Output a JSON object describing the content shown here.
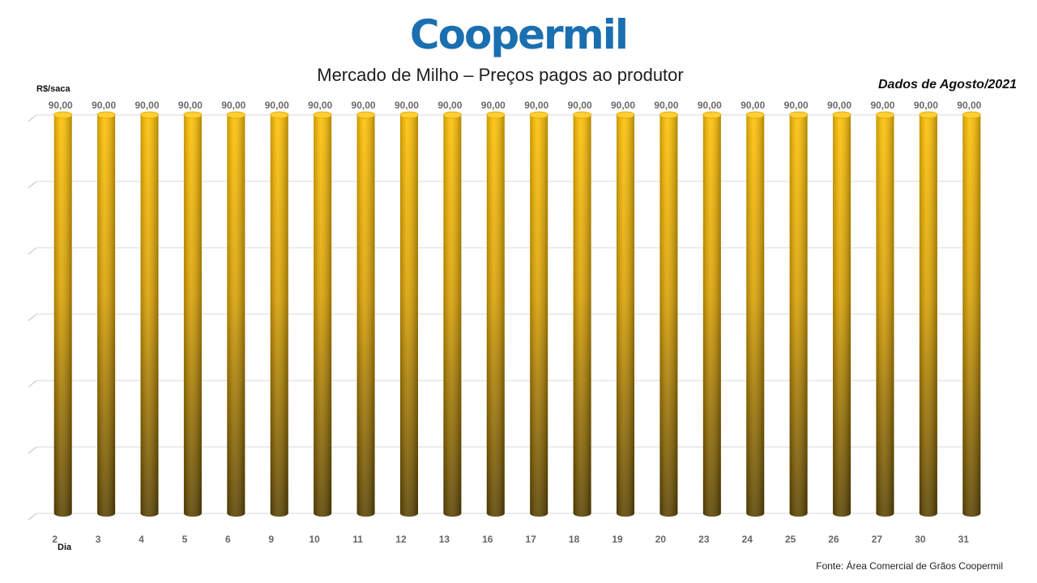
{
  "logo_text": "Coopermil",
  "title": "Mercado de Milho – Preços pagos ao produtor",
  "period": "Dados de Agosto/2021",
  "source": "Fonte:  Área Comercial de Grãos Coopermil",
  "colors": {
    "logo": "#1a6fb0",
    "bar_top": "#ffc000",
    "bar_bottom": "#5a4300",
    "grid": "#d9d9d9"
  },
  "chart_data": {
    "type": "bar",
    "ylabel": "R$/saca",
    "xlabel": "Dia",
    "categories": [
      "2",
      "3",
      "4",
      "5",
      "6",
      "9",
      "10",
      "11",
      "12",
      "13",
      "16",
      "17",
      "18",
      "19",
      "20",
      "23",
      "24",
      "25",
      "26",
      "27",
      "30",
      "31"
    ],
    "values": [
      90,
      90,
      90,
      90,
      90,
      90,
      90,
      90,
      90,
      90,
      90,
      90,
      90,
      90,
      90,
      90,
      90,
      90,
      90,
      90,
      90,
      90
    ],
    "data_labels": [
      "90,00",
      "90,00",
      "90,00",
      "90,00",
      "90,00",
      "90,00",
      "90,00",
      "90,00",
      "90,00",
      "90,00",
      "90,00",
      "90,00",
      "90,00",
      "90,00",
      "90,00",
      "90,00",
      "90,00",
      "90,00",
      "90,00",
      "90,00",
      "90,00",
      "90,00"
    ],
    "ylim": [
      0,
      90
    ],
    "grid": true,
    "legend": false,
    "style": "3d-cylinder"
  }
}
